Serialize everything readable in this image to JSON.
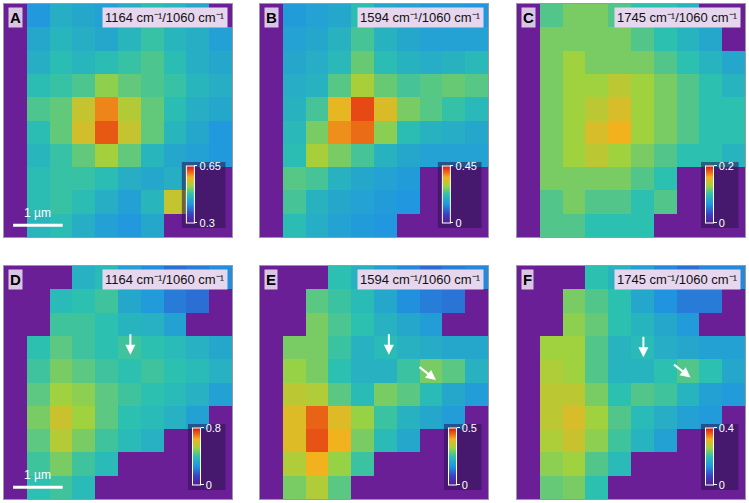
{
  "chart_data": [
    {
      "type": "heatmap",
      "label": "A",
      "title": "1164 cm⁻¹/1060 cm⁻¹",
      "x": [
        0.23,
        0.69,
        1.15,
        1.61,
        2.07,
        2.53,
        2.99,
        3.45,
        3.91,
        4.37
      ],
      "y": [
        0.23,
        0.69,
        1.15,
        1.61,
        2.07,
        2.53,
        2.99,
        3.45,
        3.91,
        4.37
      ],
      "xlim": [
        0,
        4.6
      ],
      "ylim": [
        0,
        4.6
      ],
      "tick_labels": false,
      "z": [
        [
          null,
          0.42,
          0.45,
          0.44,
          0.43,
          0.45,
          0.47,
          0.46,
          0.44,
          null
        ],
        [
          null,
          0.44,
          0.46,
          0.45,
          0.44,
          0.46,
          0.48,
          0.46,
          0.45,
          0.43
        ],
        [
          null,
          0.45,
          0.47,
          0.46,
          0.47,
          0.48,
          0.49,
          0.47,
          0.45,
          0.44
        ],
        [
          null,
          0.47,
          0.48,
          0.49,
          0.52,
          0.5,
          0.49,
          0.48,
          0.46,
          0.45
        ],
        [
          null,
          0.49,
          0.5,
          0.55,
          0.6,
          0.54,
          0.5,
          0.47,
          0.45,
          0.44
        ],
        [
          null,
          0.47,
          0.5,
          0.56,
          0.62,
          0.55,
          0.5,
          0.46,
          0.44,
          0.42
        ],
        [
          null,
          0.46,
          0.48,
          0.5,
          0.53,
          0.5,
          0.46,
          0.44,
          0.43,
          0.42
        ],
        [
          null,
          0.47,
          0.48,
          0.48,
          0.47,
          0.45,
          0.44,
          0.45,
          null,
          null
        ],
        [
          null,
          0.47,
          0.48,
          0.47,
          0.45,
          0.43,
          0.46,
          0.55,
          null,
          null
        ],
        [
          null,
          0.46,
          0.47,
          0.45,
          0.43,
          0.42,
          0.44,
          null,
          null,
          null
        ]
      ],
      "colorbar": {
        "range": [
          0.3,
          0.65
        ],
        "ticks": [
          0.3,
          0.65
        ]
      },
      "scale_bar": {
        "length": 1,
        "label": "1 µm"
      }
    },
    {
      "type": "heatmap",
      "label": "B",
      "title": "1594 cm⁻¹/1060 cm⁻¹",
      "x": [
        0.23,
        0.69,
        1.15,
        1.61,
        2.07,
        2.53,
        2.99,
        3.45,
        3.91,
        4.37
      ],
      "y": [
        0.23,
        0.69,
        1.15,
        1.61,
        2.07,
        2.53,
        2.99,
        3.45,
        3.91,
        4.37
      ],
      "xlim": [
        0,
        4.6
      ],
      "ylim": [
        0,
        4.6
      ],
      "tick_labels": false,
      "z": [
        [
          null,
          0.16,
          0.17,
          0.18,
          0.22,
          0.18,
          0.17,
          0.16,
          0.16,
          0.15
        ],
        [
          null,
          0.17,
          0.18,
          0.2,
          0.24,
          0.2,
          0.18,
          0.17,
          0.17,
          0.17
        ],
        [
          null,
          0.18,
          0.19,
          0.21,
          0.26,
          0.22,
          0.2,
          0.19,
          0.2,
          0.21
        ],
        [
          null,
          0.19,
          0.2,
          0.25,
          0.3,
          0.26,
          0.24,
          0.25,
          0.26,
          0.25
        ],
        [
          null,
          0.2,
          0.24,
          0.35,
          0.42,
          0.34,
          0.27,
          0.25,
          0.23,
          0.21
        ],
        [
          null,
          0.21,
          0.27,
          0.38,
          0.4,
          0.28,
          0.22,
          0.2,
          0.19,
          0.18
        ],
        [
          null,
          0.22,
          0.3,
          0.27,
          0.24,
          0.2,
          0.18,
          0.17,
          0.17,
          0.17
        ],
        [
          null,
          0.25,
          0.24,
          0.2,
          0.18,
          0.17,
          0.16,
          null,
          null,
          null
        ],
        [
          null,
          0.24,
          0.2,
          0.18,
          0.17,
          0.16,
          0.15,
          null,
          null,
          null
        ],
        [
          null,
          0.22,
          0.19,
          0.17,
          0.16,
          0.15,
          null,
          null,
          null,
          null
        ]
      ],
      "colorbar": {
        "range": [
          0,
          0.45
        ],
        "ticks": [
          0,
          0.45
        ]
      }
    },
    {
      "type": "heatmap",
      "label": "C",
      "title": "1745 cm⁻¹/1060 cm⁻¹",
      "x": [
        0.23,
        0.69,
        1.15,
        1.61,
        2.07,
        2.53,
        2.99,
        3.45,
        3.91,
        4.37
      ],
      "y": [
        0.23,
        0.69,
        1.15,
        1.61,
        2.07,
        2.53,
        2.99,
        3.45,
        3.91,
        4.37
      ],
      "xlim": [
        0,
        4.6
      ],
      "ylim": [
        0,
        4.6
      ],
      "tick_labels": false,
      "z": [
        [
          null,
          0.11,
          0.12,
          0.12,
          0.11,
          0.1,
          0.1,
          0.09,
          null,
          null
        ],
        [
          null,
          0.12,
          0.12,
          0.12,
          0.12,
          0.11,
          0.1,
          0.09,
          0.08,
          null
        ],
        [
          null,
          0.12,
          0.13,
          0.12,
          0.12,
          0.12,
          0.11,
          0.1,
          0.09,
          0.08
        ],
        [
          null,
          0.12,
          0.13,
          0.13,
          0.14,
          0.13,
          0.12,
          0.11,
          0.1,
          0.09
        ],
        [
          null,
          0.12,
          0.13,
          0.14,
          0.15,
          0.13,
          0.12,
          0.11,
          0.1,
          0.1
        ],
        [
          null,
          0.12,
          0.13,
          0.15,
          0.16,
          0.13,
          0.12,
          0.11,
          0.1,
          0.1
        ],
        [
          null,
          0.12,
          0.13,
          0.14,
          0.13,
          0.12,
          0.11,
          0.1,
          0.1,
          0.09
        ],
        [
          null,
          0.12,
          0.12,
          0.12,
          0.12,
          0.11,
          0.1,
          null,
          null,
          null
        ],
        [
          null,
          0.11,
          0.12,
          0.11,
          0.11,
          0.1,
          0.11,
          null,
          null,
          null
        ],
        [
          null,
          0.11,
          0.11,
          0.1,
          0.1,
          0.1,
          null,
          null,
          null,
          null
        ]
      ],
      "colorbar": {
        "range": [
          0,
          0.2
        ],
        "ticks": [
          0,
          0.2
        ]
      }
    },
    {
      "type": "heatmap",
      "label": "D",
      "title": "1164 cm⁻¹/1060 cm⁻¹",
      "x": [
        0.23,
        0.69,
        1.15,
        1.61,
        2.07,
        2.53,
        2.99,
        3.45,
        3.91,
        4.37
      ],
      "y": [
        0.23,
        0.69,
        1.15,
        1.61,
        2.07,
        2.53,
        2.99,
        3.45,
        3.91,
        4.37
      ],
      "xlim": [
        0,
        4.6
      ],
      "ylim": [
        0,
        4.6
      ],
      "tick_labels": false,
      "z": [
        [
          null,
          null,
          null,
          0.35,
          0.38,
          0.3,
          0.25,
          0.2,
          0.22,
          0.25
        ],
        [
          null,
          null,
          0.38,
          0.4,
          0.42,
          0.32,
          0.28,
          0.22,
          0.2,
          null
        ],
        [
          null,
          null,
          0.42,
          0.42,
          0.4,
          0.36,
          0.35,
          0.3,
          null,
          null
        ],
        [
          null,
          0.4,
          0.45,
          0.42,
          0.4,
          0.42,
          0.4,
          0.38,
          0.35,
          0.32
        ],
        [
          null,
          0.42,
          0.48,
          0.45,
          0.42,
          0.4,
          0.42,
          0.4,
          0.38,
          0.35
        ],
        [
          null,
          0.45,
          0.52,
          0.5,
          0.45,
          0.42,
          0.4,
          0.38,
          0.35,
          0.3
        ],
        [
          null,
          0.48,
          0.58,
          0.52,
          0.45,
          0.4,
          0.38,
          0.35,
          0.3,
          null
        ],
        [
          null,
          0.45,
          0.55,
          0.48,
          0.42,
          0.38,
          0.35,
          null,
          null,
          null
        ],
        [
          null,
          0.42,
          0.48,
          0.42,
          0.38,
          null,
          null,
          null,
          null,
          null
        ],
        [
          null,
          0.4,
          0.42,
          0.38,
          null,
          null,
          null,
          null,
          null,
          null
        ]
      ],
      "colorbar": {
        "range": [
          0,
          0.8
        ],
        "ticks": [
          0,
          0.8
        ]
      },
      "scale_bar": {
        "length": 1,
        "label": "1 µm"
      }
    },
    {
      "type": "heatmap",
      "label": "E",
      "title": "1594 cm⁻¹/1060 cm⁻¹",
      "x": [
        0.23,
        0.69,
        1.15,
        1.61,
        2.07,
        2.53,
        2.99,
        3.45,
        3.91,
        4.37
      ],
      "y": [
        0.23,
        0.69,
        1.15,
        1.61,
        2.07,
        2.53,
        2.99,
        3.45,
        3.91,
        4.37
      ],
      "xlim": [
        0,
        4.6
      ],
      "ylim": [
        0,
        4.6
      ],
      "tick_labels": false,
      "z": [
        [
          null,
          null,
          null,
          0.25,
          0.22,
          0.18,
          0.15,
          0.12,
          0.14,
          0.15
        ],
        [
          null,
          null,
          0.28,
          0.26,
          0.24,
          0.2,
          0.16,
          0.14,
          0.13,
          null
        ],
        [
          null,
          null,
          0.3,
          0.27,
          0.25,
          0.22,
          0.2,
          0.18,
          null,
          null
        ],
        [
          null,
          0.3,
          0.3,
          0.26,
          0.22,
          0.24,
          0.22,
          0.21,
          0.2,
          0.2
        ],
        [
          null,
          0.32,
          0.3,
          0.25,
          0.22,
          0.22,
          0.26,
          0.3,
          0.28,
          0.22
        ],
        [
          null,
          0.35,
          0.34,
          0.28,
          0.24,
          0.3,
          0.28,
          0.24,
          0.2,
          0.18
        ],
        [
          null,
          0.38,
          0.45,
          0.38,
          0.32,
          0.26,
          0.22,
          0.2,
          0.18,
          null
        ],
        [
          null,
          0.38,
          0.46,
          0.4,
          0.3,
          0.24,
          0.2,
          null,
          null,
          null
        ],
        [
          null,
          0.34,
          0.4,
          0.32,
          0.26,
          null,
          null,
          null,
          null,
          null
        ],
        [
          null,
          0.3,
          0.34,
          0.28,
          null,
          null,
          null,
          null,
          null,
          null
        ]
      ],
      "colorbar": {
        "range": [
          0,
          0.5
        ],
        "ticks": [
          0,
          0.5
        ]
      }
    },
    {
      "type": "heatmap",
      "label": "F",
      "title": "1745 cm⁻¹/1060 cm⁻¹",
      "x": [
        0.23,
        0.69,
        1.15,
        1.61,
        2.07,
        2.53,
        2.99,
        3.45,
        3.91,
        4.37
      ],
      "y": [
        0.23,
        0.69,
        1.15,
        1.61,
        2.07,
        2.53,
        2.99,
        3.45,
        3.91,
        4.37
      ],
      "xlim": [
        0,
        4.6
      ],
      "ylim": [
        0,
        4.6
      ],
      "tick_labels": false,
      "z": [
        [
          null,
          null,
          null,
          0.2,
          0.18,
          0.15,
          0.12,
          0.1,
          0.12,
          0.12
        ],
        [
          null,
          null,
          0.24,
          0.22,
          0.2,
          0.16,
          0.13,
          0.11,
          0.11,
          null
        ],
        [
          null,
          null,
          0.25,
          0.23,
          0.2,
          0.18,
          0.16,
          0.14,
          null,
          null
        ],
        [
          null,
          0.26,
          0.26,
          0.22,
          0.18,
          0.19,
          0.17,
          0.16,
          0.15,
          0.15
        ],
        [
          null,
          0.27,
          0.26,
          0.22,
          0.18,
          0.18,
          0.2,
          0.22,
          0.2,
          0.16
        ],
        [
          null,
          0.28,
          0.28,
          0.24,
          0.2,
          0.22,
          0.21,
          0.18,
          0.15,
          0.14
        ],
        [
          null,
          0.28,
          0.3,
          0.26,
          0.22,
          0.19,
          0.17,
          0.15,
          0.14,
          null
        ],
        [
          null,
          0.27,
          0.29,
          0.25,
          0.21,
          0.18,
          0.15,
          null,
          null,
          null
        ],
        [
          null,
          0.25,
          0.26,
          0.22,
          0.19,
          null,
          null,
          null,
          null,
          null
        ],
        [
          null,
          0.23,
          0.24,
          0.2,
          null,
          null,
          null,
          null,
          null,
          null
        ]
      ],
      "colorbar": {
        "range": [
          0,
          0.4
        ],
        "ticks": [
          0,
          0.4
        ]
      }
    }
  ]
}
